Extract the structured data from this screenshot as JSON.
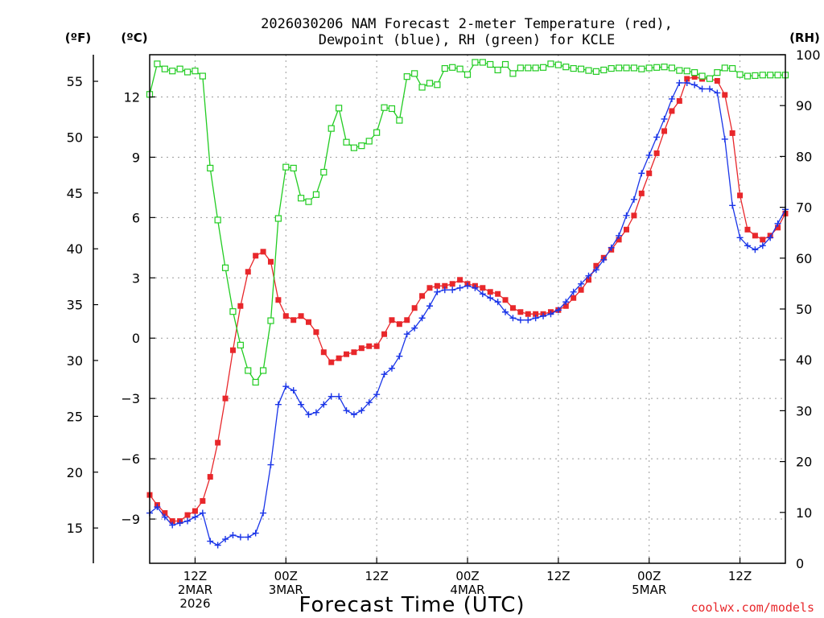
{
  "header": {
    "title_line1": "2026030206 NAM Forecast 2-meter Temperature (red),",
    "title_line2": "Dewpoint (blue), RH (green) for KCLE"
  },
  "axes": {
    "f_unit": "(ºF)",
    "c_unit": "(ºC)",
    "rh_unit": "(RH)",
    "xlabel": "Forecast Time (UTC)"
  },
  "footer": {
    "credit": "coolwx.com/models"
  },
  "colors": {
    "temp": "#e8272b",
    "dewpoint": "#1a35e8",
    "rh": "#22cc22"
  },
  "chart_data": {
    "type": "line",
    "title": "2026030206 NAM Forecast 2-meter Temperature (red), Dewpoint (blue), RH (green) for KCLE",
    "xlabel": "Forecast Time (UTC)",
    "x_units": "hours after 2026-03-02 06Z",
    "xlim": [
      0,
      84
    ],
    "grid": true,
    "x_ticks": [
      {
        "x": 6,
        "lines": [
          "12Z",
          "2MAR",
          "2026"
        ]
      },
      {
        "x": 18,
        "lines": [
          "00Z",
          "3MAR"
        ]
      },
      {
        "x": 30,
        "lines": [
          "12Z"
        ]
      },
      {
        "x": 42,
        "lines": [
          "00Z",
          "4MAR"
        ]
      },
      {
        "x": 54,
        "lines": [
          "12Z"
        ]
      },
      {
        "x": 66,
        "lines": [
          "00Z",
          "5MAR"
        ]
      },
      {
        "x": 78,
        "lines": [
          "12Z"
        ]
      }
    ],
    "y_celsius": {
      "ylim": [
        -11.2,
        14.1
      ],
      "ticks": [
        12,
        9,
        6,
        3,
        0,
        -3,
        -6,
        -9
      ],
      "tick_labels": [
        "12",
        "9",
        "6",
        "3",
        "0",
        "−3",
        "−6",
        "−9"
      ]
    },
    "y_fahrenheit": {
      "ticks": [
        55,
        50,
        45,
        40,
        35,
        30,
        25,
        20,
        15
      ]
    },
    "y_rh": {
      "ylim": [
        0,
        100
      ],
      "ticks": [
        100,
        90,
        80,
        70,
        60,
        50,
        40,
        30,
        20,
        10,
        0
      ]
    },
    "x": [
      0,
      1,
      2,
      3,
      4,
      5,
      6,
      7,
      8,
      9,
      10,
      11,
      12,
      13,
      14,
      15,
      16,
      17,
      18,
      19,
      20,
      21,
      22,
      23,
      24,
      25,
      26,
      27,
      28,
      29,
      30,
      31,
      32,
      33,
      34,
      35,
      36,
      37,
      38,
      39,
      40,
      41,
      42,
      43,
      44,
      45,
      46,
      47,
      48,
      49,
      50,
      51,
      52,
      53,
      54,
      55,
      56,
      57,
      58,
      59,
      60,
      61,
      62,
      63,
      64,
      65,
      66,
      67,
      68,
      69,
      70,
      71,
      72,
      73,
      74,
      75,
      76,
      77,
      78,
      79,
      80,
      81,
      82,
      83,
      84
    ],
    "series": [
      {
        "name": "Temperature (°C)",
        "axis": "celsius",
        "marker": "filled-square",
        "color": "#e8272b",
        "values": [
          -7.8,
          -8.3,
          -8.7,
          -9.1,
          -9.1,
          -8.8,
          -8.6,
          -8.1,
          -6.9,
          -5.2,
          -3.0,
          -0.6,
          1.6,
          3.3,
          4.1,
          4.3,
          3.8,
          1.9,
          1.1,
          0.9,
          1.1,
          0.8,
          0.3,
          -0.7,
          -1.2,
          -1.0,
          -0.8,
          -0.7,
          -0.5,
          -0.4,
          -0.4,
          0.2,
          0.9,
          0.7,
          0.9,
          1.5,
          2.1,
          2.5,
          2.6,
          2.6,
          2.7,
          2.9,
          2.7,
          2.6,
          2.5,
          2.3,
          2.2,
          1.9,
          1.5,
          1.3,
          1.2,
          1.2,
          1.2,
          1.3,
          1.4,
          1.6,
          2.0,
          2.4,
          2.9,
          3.6,
          4.0,
          4.4,
          4.9,
          5.4,
          6.1,
          7.2,
          8.2,
          9.2,
          10.3,
          11.3,
          11.8,
          12.9,
          13.0,
          12.9,
          12.9,
          12.8,
          12.1,
          10.2,
          7.1,
          5.4,
          5.1,
          4.9,
          5.1,
          5.5,
          6.2
        ]
      },
      {
        "name": "Dewpoint (°C)",
        "axis": "celsius",
        "marker": "plus",
        "color": "#1a35e8",
        "values": [
          -8.7,
          -8.4,
          -8.9,
          -9.3,
          -9.2,
          -9.1,
          -8.9,
          -8.7,
          -10.1,
          -10.3,
          -10.0,
          -9.8,
          -9.9,
          -9.9,
          -9.7,
          -8.7,
          -6.3,
          -3.3,
          -2.4,
          -2.6,
          -3.3,
          -3.8,
          -3.7,
          -3.3,
          -2.9,
          -2.9,
          -3.6,
          -3.8,
          -3.6,
          -3.2,
          -2.8,
          -1.8,
          -1.5,
          -0.9,
          0.2,
          0.5,
          1.0,
          1.6,
          2.3,
          2.4,
          2.4,
          2.5,
          2.6,
          2.5,
          2.2,
          2.0,
          1.8,
          1.3,
          1.0,
          0.9,
          0.9,
          1.0,
          1.1,
          1.2,
          1.4,
          1.8,
          2.3,
          2.7,
          3.1,
          3.4,
          3.9,
          4.5,
          5.1,
          6.1,
          6.9,
          8.2,
          9.1,
          10.0,
          10.9,
          11.9,
          12.7,
          12.7,
          12.6,
          12.4,
          12.4,
          12.2,
          9.9,
          6.6,
          5.0,
          4.6,
          4.4,
          4.6,
          5.0,
          5.7,
          6.4
        ]
      },
      {
        "name": "RH (%)",
        "axis": "rh",
        "marker": "open-square",
        "color": "#22cc22",
        "values": [
          92.2,
          98.2,
          97.2,
          96.8,
          97.2,
          96.6,
          96.8,
          95.8,
          77.7,
          67.5,
          58.1,
          49.5,
          42.9,
          37.9,
          35.6,
          37.9,
          47.7,
          67.8,
          77.9,
          77.7,
          71.8,
          71.1,
          72.5,
          76.9,
          85.5,
          89.5,
          82.8,
          81.7,
          82.1,
          83.0,
          84.7,
          89.6,
          89.4,
          87.1,
          95.7,
          96.3,
          93.6,
          94.4,
          94.1,
          97.3,
          97.5,
          97.2,
          96.1,
          98.5,
          98.5,
          98.1,
          97.0,
          98.1,
          96.3,
          97.4,
          97.4,
          97.4,
          97.5,
          98.2,
          98.0,
          97.6,
          97.3,
          97.2,
          96.9,
          96.7,
          97.0,
          97.3,
          97.4,
          97.4,
          97.4,
          97.2,
          97.4,
          97.5,
          97.6,
          97.4,
          96.9,
          96.8,
          96.5,
          95.8,
          95.3,
          96.5,
          97.4,
          97.3,
          96.1,
          95.8,
          95.9,
          96.0,
          96.0,
          96.0,
          96.0
        ]
      }
    ]
  }
}
